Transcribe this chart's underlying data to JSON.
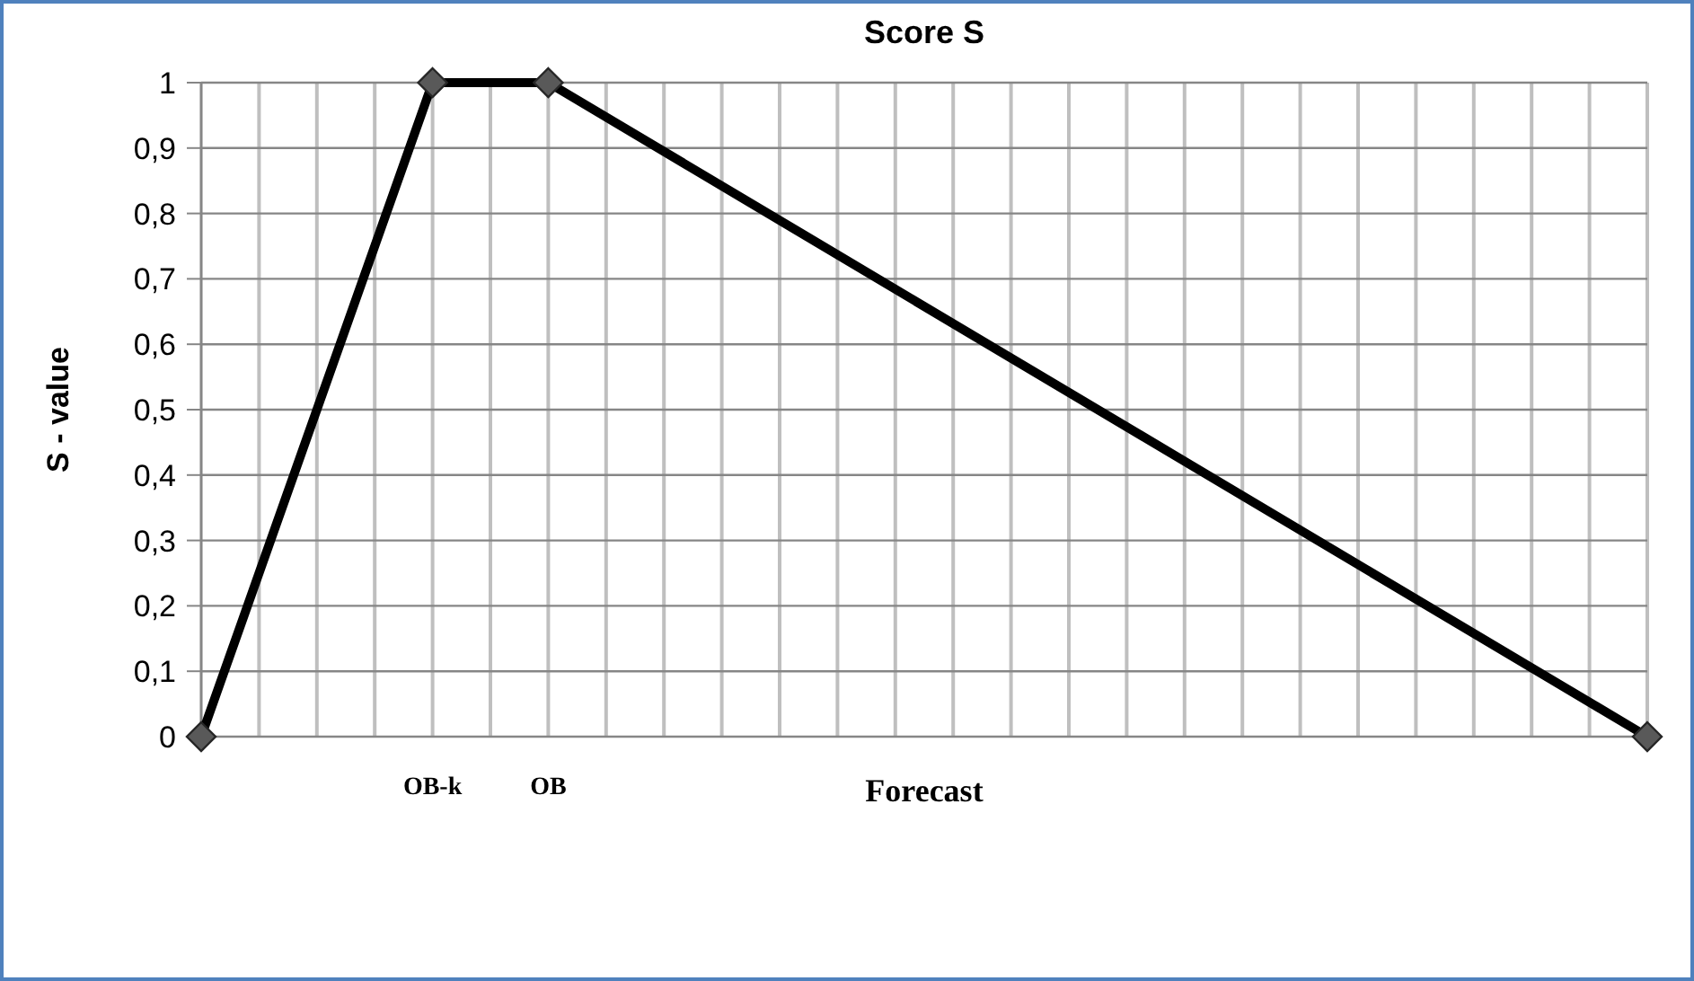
{
  "chart_data": {
    "type": "line",
    "title": "Score S",
    "xlabel": "Forecast",
    "ylabel": "S - value",
    "categories": [
      null,
      null,
      null,
      null,
      "OB-k",
      null,
      "OB",
      null,
      null,
      null,
      null,
      null,
      null,
      null,
      null,
      null,
      null,
      null,
      null,
      null,
      null,
      null,
      null,
      null,
      null,
      null
    ],
    "series": [
      {
        "color": "#000000",
        "values": [
          0,
          null,
          null,
          null,
          1,
          null,
          1,
          null,
          null,
          null,
          null,
          null,
          null,
          null,
          null,
          null,
          null,
          null,
          null,
          null,
          null,
          null,
          null,
          null,
          null,
          0
        ]
      }
    ],
    "ylim": [
      0,
      1
    ],
    "yticks": [
      0,
      {
        "value": 0.1,
        "label": "0,1"
      },
      {
        "value": 0.2,
        "label": "0,2"
      },
      {
        "value": 0.3,
        "label": "0,3"
      },
      {
        "value": 0.4,
        "label": "0,4"
      },
      {
        "value": 0.5,
        "label": "0,5"
      },
      {
        "value": 0.6,
        "label": "0,6"
      },
      {
        "value": 0.7,
        "label": "0,7"
      },
      {
        "value": 0.8,
        "label": "0,8"
      },
      {
        "value": 0.9,
        "label": "0,9"
      },
      1
    ],
    "grid": true,
    "marker": "diamond",
    "line_style": "solid"
  }
}
